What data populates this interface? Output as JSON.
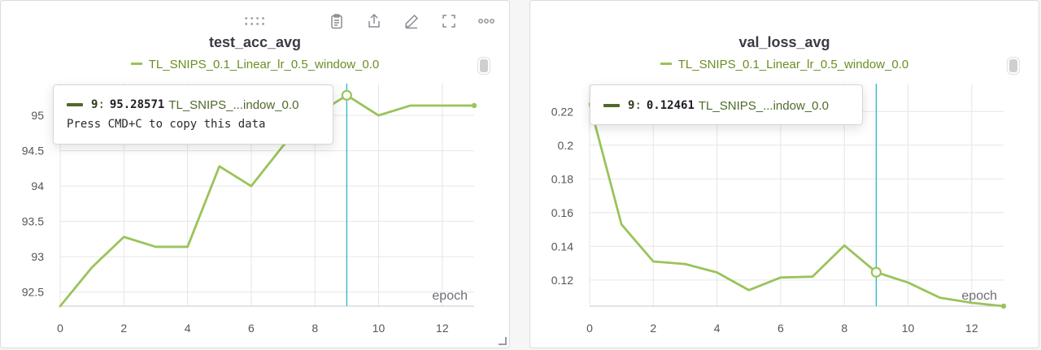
{
  "colors": {
    "series": "#9bc35a",
    "crosshair": "#29b6c9",
    "grid": "#e6e6e9",
    "tick": "#55555c",
    "axis_label": "#6f6f76",
    "legend_text": "#6b8e23"
  },
  "toolbar": {
    "icons": [
      "drag-handle-icon",
      "clipboard-icon",
      "share-icon",
      "edit-icon",
      "fullscreen-icon",
      "more-icon"
    ]
  },
  "panels": [
    {
      "title": "test_acc_avg",
      "legend": "TL_SNIPS_0.1_Linear_lr_0.5_window_0.0",
      "tooltip": {
        "epoch": "9",
        "value": "95.28571",
        "name": "TL_SNIPS_...indow_0.0",
        "hint": "Press CMD+C to copy this data"
      }
    },
    {
      "title": "val_loss_avg",
      "legend": "TL_SNIPS_0.1_Linear_lr_0.5_window_0.0",
      "tooltip": {
        "epoch": "9",
        "value": "0.12461",
        "name": "TL_SNIPS_...indow_0.0"
      }
    }
  ],
  "chart_data": [
    {
      "type": "line",
      "title": "test_acc_avg",
      "xlabel": "epoch",
      "ylabel": "",
      "x": [
        0,
        1,
        2,
        3,
        4,
        5,
        6,
        7,
        8,
        9,
        10,
        11,
        12,
        13
      ],
      "series": [
        {
          "name": "TL_SNIPS_0.1_Linear_lr_0.5_window_0.0",
          "values": [
            92.3,
            92.85,
            93.28,
            93.14,
            93.14,
            94.28,
            94.0,
            94.57,
            95.0,
            95.28571,
            95.0,
            95.14,
            95.14,
            95.14
          ]
        }
      ],
      "xticks": [
        0,
        2,
        4,
        6,
        8,
        10,
        12
      ],
      "yticks": [
        92.5,
        93,
        93.5,
        94,
        94.5,
        95
      ],
      "xlim": [
        0,
        13
      ],
      "ylim": [
        92.3,
        95.45
      ],
      "grid": true,
      "hover_x": 9
    },
    {
      "type": "line",
      "title": "val_loss_avg",
      "xlabel": "epoch",
      "ylabel": "",
      "x": [
        0,
        1,
        2,
        3,
        4,
        5,
        6,
        7,
        8,
        9,
        10,
        11,
        12,
        13
      ],
      "series": [
        {
          "name": "TL_SNIPS_0.1_Linear_lr_0.5_window_0.0",
          "values": [
            0.2245,
            0.153,
            0.131,
            0.1295,
            0.1245,
            0.114,
            0.1215,
            0.122,
            0.1405,
            0.12461,
            0.1185,
            0.1095,
            0.1065,
            0.1045
          ]
        }
      ],
      "xticks": [
        0,
        2,
        4,
        6,
        8,
        10,
        12
      ],
      "yticks": [
        0.12,
        0.14,
        0.16,
        0.18,
        0.2,
        0.22
      ],
      "xlim": [
        0,
        13
      ],
      "ylim": [
        0.1045,
        0.2365
      ],
      "grid": true,
      "hover_x": 9
    }
  ]
}
